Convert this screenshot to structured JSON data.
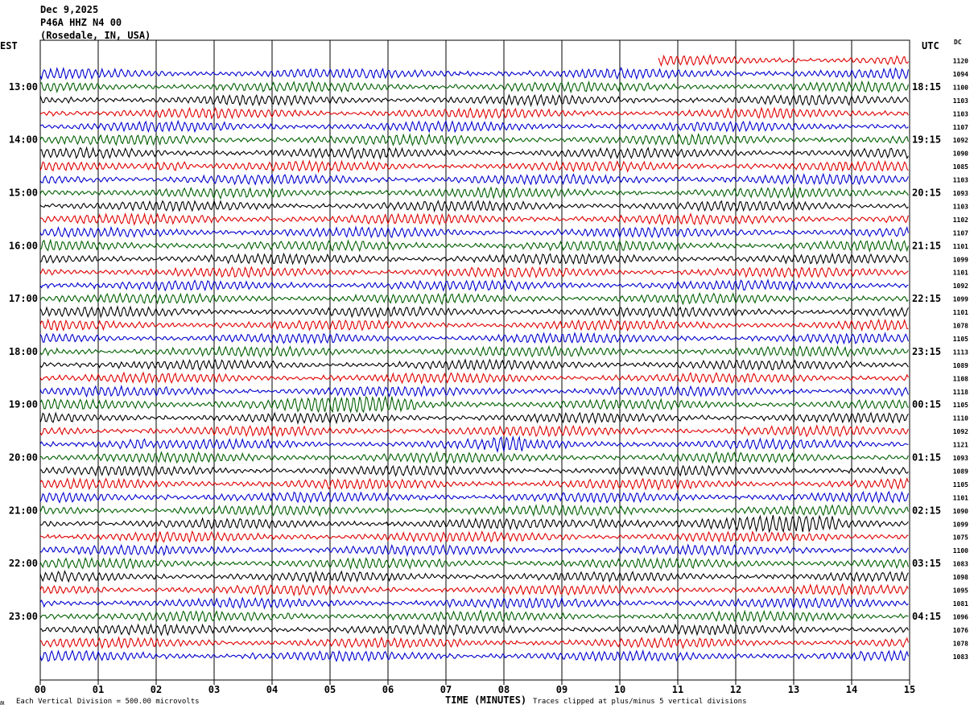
{
  "header": {
    "date": "Dec 9,2025",
    "station": "P46A HHZ N4 00",
    "location": "(Rosedale, IN, USA)",
    "left_zone": "EST",
    "right_zone": "UTC",
    "dc_label": "DC"
  },
  "footer": {
    "scale_note": "Each Vertical Division =  500.00 microvolts",
    "clip_note": "Traces clipped at plus/minus 5 vertical divisions",
    "mark": "ʍ"
  },
  "chart_data": {
    "type": "line",
    "xlabel": "TIME (MINUTES)",
    "x_ticks": [
      "00",
      "01",
      "02",
      "03",
      "04",
      "05",
      "06",
      "07",
      "08",
      "09",
      "10",
      "11",
      "12",
      "13",
      "14",
      "15"
    ],
    "xlim": [
      0,
      15
    ],
    "rows_per_hour": 4,
    "start_trace_minute_offset": 10.67,
    "left_hour_labels": [
      "13:00",
      "14:00",
      "15:00",
      "16:00",
      "17:00",
      "18:00",
      "19:00",
      "20:00",
      "21:00",
      "22:00",
      "23:00"
    ],
    "right_hour_labels": [
      "18:15",
      "19:15",
      "20:15",
      "21:15",
      "22:15",
      "23:15",
      "00:15",
      "01:15",
      "02:15",
      "03:15",
      "04:15"
    ],
    "trace_colors": [
      "#000000",
      "#e00000",
      "#0000d0",
      "#006000"
    ],
    "dc_offsets": [
      "1120",
      "1094",
      "1100",
      "1103",
      "1103",
      "1107",
      "1092",
      "1090",
      "1085",
      "1103",
      "1093",
      "1103",
      "1102",
      "1107",
      "1101",
      "1099",
      "1101",
      "1092",
      "1099",
      "1101",
      "1078",
      "1105",
      "1113",
      "1089",
      "1108",
      "1118",
      "1105",
      "1110",
      "1092",
      "1121",
      "1093",
      "1089",
      "1105",
      "1101",
      "1090",
      "1099",
      "1075",
      "1100",
      "1083",
      "1098",
      "1095",
      "1081",
      "1096",
      "1076",
      "1078",
      "1083"
    ],
    "events": [
      {
        "row": 8,
        "from_minute": 1.8,
        "to_minute": 2.6,
        "amplitude": "high"
      },
      {
        "row": 26,
        "from_minute": 3.0,
        "to_minute": 6.5,
        "amplitude": "medium"
      },
      {
        "row": 29,
        "from_minute": 0.9,
        "to_minute": 1.8,
        "amplitude": "medium"
      },
      {
        "row": 29,
        "from_minute": 7.8,
        "to_minute": 8.4,
        "amplitude": "medium"
      },
      {
        "row": 35,
        "from_minute": 9.5,
        "to_minute": 13.8,
        "amplitude": "medium"
      }
    ]
  }
}
